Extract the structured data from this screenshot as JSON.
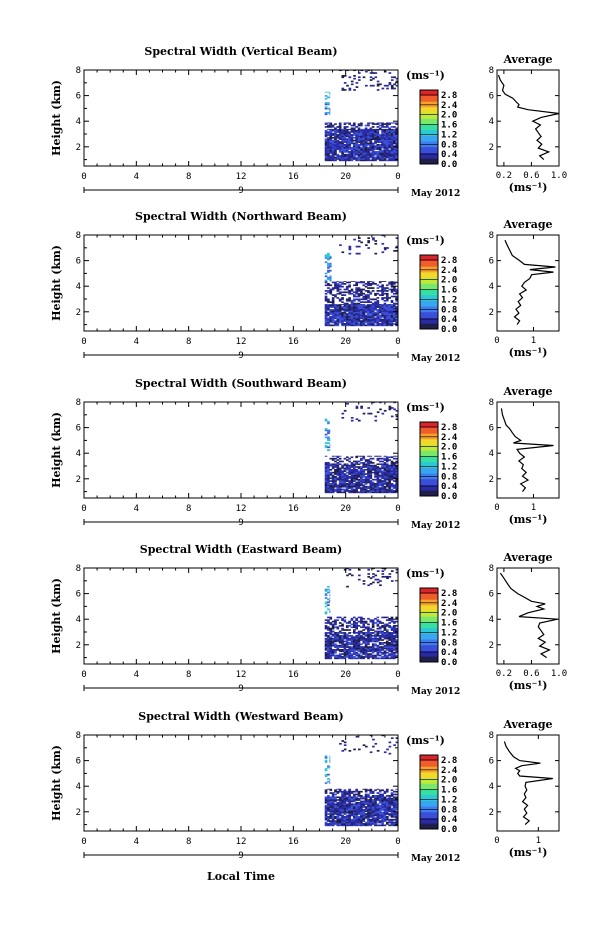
{
  "x_axis_label": "Local Time",
  "date_label": "May 2012",
  "unit_label": "(ms⁻¹)",
  "y_axis_label": "Height (km)",
  "average_title": "Average",
  "colors": {
    "colormap": [
      "#1f1f4a",
      "#2a2aa5",
      "#3a4fd8",
      "#3f7cf0",
      "#39a7ef",
      "#2cc8d6",
      "#38dfa3",
      "#7ae86a",
      "#c1e93a",
      "#f1d82b",
      "#f6a12a",
      "#ef5d2a",
      "#d8262a"
    ]
  },
  "chart_data": [
    {
      "type": "heatmap",
      "title": "Spectral Width (Vertical Beam)",
      "ylabel": "Height (km)",
      "x_ticks": [
        "0",
        "4",
        "8",
        "12",
        "16",
        "20",
        "0"
      ],
      "x_second_tick": "9",
      "y_ticks": [
        "2",
        "4",
        "6",
        "8"
      ],
      "colorbar_ticks": [
        "0.0",
        "0.4",
        "0.8",
        "1.2",
        "1.6",
        "2.0",
        "2.4",
        "2.8"
      ],
      "xlim": [
        0,
        24
      ],
      "ylim": [
        0.5,
        8
      ],
      "clim": [
        0,
        3.0
      ],
      "seed": 11,
      "data_regions": [
        {
          "t0": 18.4,
          "t1": 24,
          "h0": 0.9,
          "h1": 3.4,
          "density": 0.93,
          "vmin": 0.1,
          "vmax": 0.65
        },
        {
          "t0": 18.4,
          "t1": 24,
          "h0": 3.4,
          "h1": 3.9,
          "density": 0.55,
          "vmin": 0.1,
          "vmax": 0.5
        },
        {
          "t0": 18.4,
          "t1": 18.8,
          "h0": 4.5,
          "h1": 6.3,
          "density": 0.5,
          "vmin": 0.5,
          "vmax": 1.4
        },
        {
          "t0": 19.5,
          "t1": 24,
          "h0": 6.4,
          "h1": 8.0,
          "density": 0.16,
          "vmin": 0.1,
          "vmax": 0.4
        }
      ],
      "average": {
        "xlim": [
          0.1,
          1.0
        ],
        "x_ticks": [
          "0.2",
          "0.6",
          "1.0"
        ],
        "x_tick_values": [
          0.2,
          0.6,
          1.0
        ],
        "y_ticks": [
          "2",
          "4",
          "6",
          "8"
        ],
        "ylim": [
          0.5,
          8
        ],
        "profile": [
          [
            1.0,
            0.78
          ],
          [
            1.3,
            0.72
          ],
          [
            1.6,
            0.85
          ],
          [
            1.9,
            0.7
          ],
          [
            2.2,
            0.75
          ],
          [
            2.5,
            0.68
          ],
          [
            2.8,
            0.74
          ],
          [
            3.1,
            0.7
          ],
          [
            3.4,
            0.66
          ],
          [
            3.7,
            0.73
          ],
          [
            4.0,
            0.62
          ],
          [
            4.3,
            0.74
          ],
          [
            4.6,
            1.0
          ],
          [
            4.9,
            0.55
          ],
          [
            5.1,
            0.4
          ],
          [
            5.3,
            0.42
          ],
          [
            5.5,
            0.38
          ],
          [
            5.8,
            0.33
          ],
          [
            6.1,
            0.22
          ],
          [
            6.4,
            0.18
          ],
          [
            6.8,
            0.2
          ],
          [
            7.2,
            0.15
          ],
          [
            7.6,
            0.12
          ]
        ]
      }
    },
    {
      "type": "heatmap",
      "title": "Spectral Width (Northward Beam)",
      "ylabel": "Height (km)",
      "x_ticks": [
        "0",
        "4",
        "8",
        "12",
        "16",
        "20",
        "0"
      ],
      "x_second_tick": "9",
      "y_ticks": [
        "2",
        "4",
        "6",
        "8"
      ],
      "colorbar_ticks": [
        "0.0",
        "0.4",
        "0.8",
        "1.2",
        "1.6",
        "2.0",
        "2.4",
        "2.8"
      ],
      "xlim": [
        0,
        24
      ],
      "ylim": [
        0.5,
        8
      ],
      "clim": [
        0,
        3.0
      ],
      "seed": 23,
      "data_regions": [
        {
          "t0": 18.4,
          "t1": 24,
          "h0": 0.9,
          "h1": 2.6,
          "density": 0.93,
          "vmin": 0.1,
          "vmax": 0.7
        },
        {
          "t0": 18.4,
          "t1": 24,
          "h0": 2.6,
          "h1": 4.4,
          "density": 0.5,
          "vmin": 0.1,
          "vmax": 0.5
        },
        {
          "t0": 18.4,
          "t1": 18.9,
          "h0": 4.4,
          "h1": 6.6,
          "density": 0.45,
          "vmin": 0.5,
          "vmax": 1.4
        },
        {
          "t0": 19.5,
          "t1": 24,
          "h0": 6.5,
          "h1": 8.0,
          "density": 0.1,
          "vmin": 0.1,
          "vmax": 0.4
        }
      ],
      "average": {
        "xlim": [
          0,
          1.7
        ],
        "x_ticks": [
          "0",
          "1"
        ],
        "x_tick_values": [
          0,
          1
        ],
        "y_ticks": [
          "2",
          "4",
          "6",
          "8"
        ],
        "ylim": [
          0.5,
          8
        ],
        "profile": [
          [
            1.0,
            0.55
          ],
          [
            1.3,
            0.62
          ],
          [
            1.6,
            0.48
          ],
          [
            1.9,
            0.6
          ],
          [
            2.2,
            0.52
          ],
          [
            2.5,
            0.65
          ],
          [
            2.8,
            0.58
          ],
          [
            3.1,
            0.7
          ],
          [
            3.4,
            0.62
          ],
          [
            3.7,
            0.8
          ],
          [
            4.0,
            0.68
          ],
          [
            4.3,
            0.75
          ],
          [
            4.6,
            0.9
          ],
          [
            4.9,
            0.95
          ],
          [
            5.1,
            1.55
          ],
          [
            5.3,
            0.9
          ],
          [
            5.5,
            1.6
          ],
          [
            5.7,
            0.75
          ],
          [
            6.0,
            0.62
          ],
          [
            6.4,
            0.42
          ],
          [
            6.8,
            0.35
          ],
          [
            7.2,
            0.28
          ],
          [
            7.6,
            0.22
          ]
        ]
      }
    },
    {
      "type": "heatmap",
      "title": "Spectral Width (Southward Beam)",
      "ylabel": "Height (km)",
      "x_ticks": [
        "0",
        "4",
        "8",
        "12",
        "16",
        "20",
        "0"
      ],
      "x_second_tick": "9",
      "y_ticks": [
        "2",
        "4",
        "6",
        "8"
      ],
      "colorbar_ticks": [
        "0.0",
        "0.4",
        "0.8",
        "1.2",
        "1.6",
        "2.0",
        "2.4",
        "2.8"
      ],
      "xlim": [
        0,
        24
      ],
      "ylim": [
        0.5,
        8
      ],
      "clim": [
        0,
        3.0
      ],
      "seed": 37,
      "data_regions": [
        {
          "t0": 18.4,
          "t1": 24,
          "h0": 0.9,
          "h1": 3.2,
          "density": 0.85,
          "vmin": 0.1,
          "vmax": 0.55
        },
        {
          "t0": 18.4,
          "t1": 24,
          "h0": 3.2,
          "h1": 3.8,
          "density": 0.4,
          "vmin": 0.1,
          "vmax": 0.5
        },
        {
          "t0": 18.4,
          "t1": 18.8,
          "h0": 4.2,
          "h1": 6.7,
          "density": 0.45,
          "vmin": 0.5,
          "vmax": 1.4
        },
        {
          "t0": 19.5,
          "t1": 24,
          "h0": 6.5,
          "h1": 8.0,
          "density": 0.1,
          "vmin": 0.1,
          "vmax": 0.4
        }
      ],
      "average": {
        "xlim": [
          0,
          1.7
        ],
        "x_ticks": [
          "0",
          "1"
        ],
        "x_tick_values": [
          0,
          1
        ],
        "y_ticks": [
          "2",
          "4",
          "6",
          "8"
        ],
        "ylim": [
          0.5,
          8
        ],
        "profile": [
          [
            1.0,
            0.7
          ],
          [
            1.3,
            0.78
          ],
          [
            1.6,
            0.65
          ],
          [
            1.9,
            0.85
          ],
          [
            2.2,
            0.7
          ],
          [
            2.5,
            0.8
          ],
          [
            2.8,
            0.68
          ],
          [
            3.1,
            0.72
          ],
          [
            3.4,
            0.6
          ],
          [
            3.7,
            0.75
          ],
          [
            4.0,
            0.62
          ],
          [
            4.3,
            0.55
          ],
          [
            4.6,
            1.55
          ],
          [
            4.8,
            0.45
          ],
          [
            5.0,
            0.65
          ],
          [
            5.3,
            0.5
          ],
          [
            5.6,
            0.42
          ],
          [
            5.9,
            0.35
          ],
          [
            6.2,
            0.25
          ],
          [
            6.6,
            0.2
          ],
          [
            7.0,
            0.15
          ],
          [
            7.5,
            0.12
          ]
        ]
      }
    },
    {
      "type": "heatmap",
      "title": "Spectral Width (Eastward Beam)",
      "ylabel": "Height (km)",
      "x_ticks": [
        "0",
        "4",
        "8",
        "12",
        "16",
        "20",
        "0"
      ],
      "x_second_tick": "9",
      "y_ticks": [
        "2",
        "4",
        "6",
        "8"
      ],
      "colorbar_ticks": [
        "0.0",
        "0.4",
        "0.8",
        "1.2",
        "1.6",
        "2.0",
        "2.4",
        "2.8"
      ],
      "xlim": [
        0,
        24
      ],
      "ylim": [
        0.5,
        8
      ],
      "clim": [
        0,
        3.0
      ],
      "seed": 53,
      "data_regions": [
        {
          "t0": 18.4,
          "t1": 24,
          "h0": 0.9,
          "h1": 3.0,
          "density": 0.8,
          "vmin": 0.1,
          "vmax": 0.6
        },
        {
          "t0": 18.4,
          "t1": 24,
          "h0": 3.0,
          "h1": 4.2,
          "density": 0.5,
          "vmin": 0.1,
          "vmax": 0.5
        },
        {
          "t0": 18.4,
          "t1": 18.8,
          "h0": 4.4,
          "h1": 6.6,
          "density": 0.45,
          "vmin": 0.5,
          "vmax": 1.4
        },
        {
          "t0": 19.5,
          "t1": 24,
          "h0": 6.5,
          "h1": 8.0,
          "density": 0.12,
          "vmin": 0.1,
          "vmax": 0.4
        }
      ],
      "average": {
        "xlim": [
          0.1,
          1.0
        ],
        "x_ticks": [
          "0.2",
          "0.6",
          "1.0"
        ],
        "x_tick_values": [
          0.2,
          0.6,
          1.0
        ],
        "y_ticks": [
          "2",
          "4",
          "6",
          "8"
        ],
        "ylim": [
          0.5,
          8
        ],
        "profile": [
          [
            1.0,
            0.82
          ],
          [
            1.3,
            0.74
          ],
          [
            1.6,
            0.86
          ],
          [
            1.9,
            0.72
          ],
          [
            2.2,
            0.8
          ],
          [
            2.5,
            0.7
          ],
          [
            2.8,
            0.78
          ],
          [
            3.1,
            0.74
          ],
          [
            3.4,
            0.7
          ],
          [
            3.7,
            0.72
          ],
          [
            4.0,
            0.98
          ],
          [
            4.2,
            0.42
          ],
          [
            4.5,
            0.55
          ],
          [
            4.8,
            0.78
          ],
          [
            5.0,
            0.68
          ],
          [
            5.2,
            0.8
          ],
          [
            5.4,
            0.6
          ],
          [
            5.7,
            0.5
          ],
          [
            6.0,
            0.4
          ],
          [
            6.4,
            0.3
          ],
          [
            6.8,
            0.25
          ],
          [
            7.2,
            0.2
          ],
          [
            7.6,
            0.15
          ]
        ]
      }
    },
    {
      "type": "heatmap",
      "title": "Spectral Width (Westward Beam)",
      "ylabel": "Height (km)",
      "x_ticks": [
        "0",
        "4",
        "8",
        "12",
        "16",
        "20",
        "0"
      ],
      "x_second_tick": "9",
      "y_ticks": [
        "2",
        "4",
        "6",
        "8"
      ],
      "colorbar_ticks": [
        "0.0",
        "0.4",
        "0.8",
        "1.2",
        "1.6",
        "2.0",
        "2.4",
        "2.8"
      ],
      "xlim": [
        0,
        24
      ],
      "ylim": [
        0.5,
        8
      ],
      "clim": [
        0,
        3.0
      ],
      "seed": 71,
      "data_regions": [
        {
          "t0": 18.4,
          "t1": 24,
          "h0": 0.9,
          "h1": 3.2,
          "density": 0.9,
          "vmin": 0.1,
          "vmax": 0.65
        },
        {
          "t0": 18.4,
          "t1": 24,
          "h0": 3.2,
          "h1": 3.8,
          "density": 0.45,
          "vmin": 0.1,
          "vmax": 0.5
        },
        {
          "t0": 18.4,
          "t1": 18.8,
          "h0": 4.2,
          "h1": 6.4,
          "density": 0.45,
          "vmin": 0.5,
          "vmax": 1.4
        },
        {
          "t0": 19.5,
          "t1": 24,
          "h0": 6.5,
          "h1": 8.0,
          "density": 0.1,
          "vmin": 0.1,
          "vmax": 0.4
        }
      ],
      "average": {
        "xlim": [
          0,
          1.5
        ],
        "x_ticks": [
          "0",
          "1"
        ],
        "x_tick_values": [
          0,
          1
        ],
        "y_ticks": [
          "2",
          "4",
          "6",
          "8"
        ],
        "ylim": [
          0.5,
          8
        ],
        "profile": [
          [
            1.0,
            0.68
          ],
          [
            1.3,
            0.78
          ],
          [
            1.6,
            0.64
          ],
          [
            1.9,
            0.72
          ],
          [
            2.2,
            0.66
          ],
          [
            2.5,
            0.74
          ],
          [
            2.8,
            0.62
          ],
          [
            3.1,
            0.7
          ],
          [
            3.4,
            0.66
          ],
          [
            3.7,
            0.72
          ],
          [
            4.0,
            0.68
          ],
          [
            4.3,
            0.7
          ],
          [
            4.6,
            1.35
          ],
          [
            4.8,
            0.55
          ],
          [
            5.0,
            0.5
          ],
          [
            5.2,
            0.55
          ],
          [
            5.4,
            0.45
          ],
          [
            5.6,
            0.6
          ],
          [
            5.8,
            1.05
          ],
          [
            6.0,
            0.55
          ],
          [
            6.3,
            0.4
          ],
          [
            6.7,
            0.3
          ],
          [
            7.1,
            0.22
          ],
          [
            7.5,
            0.18
          ]
        ]
      }
    }
  ]
}
